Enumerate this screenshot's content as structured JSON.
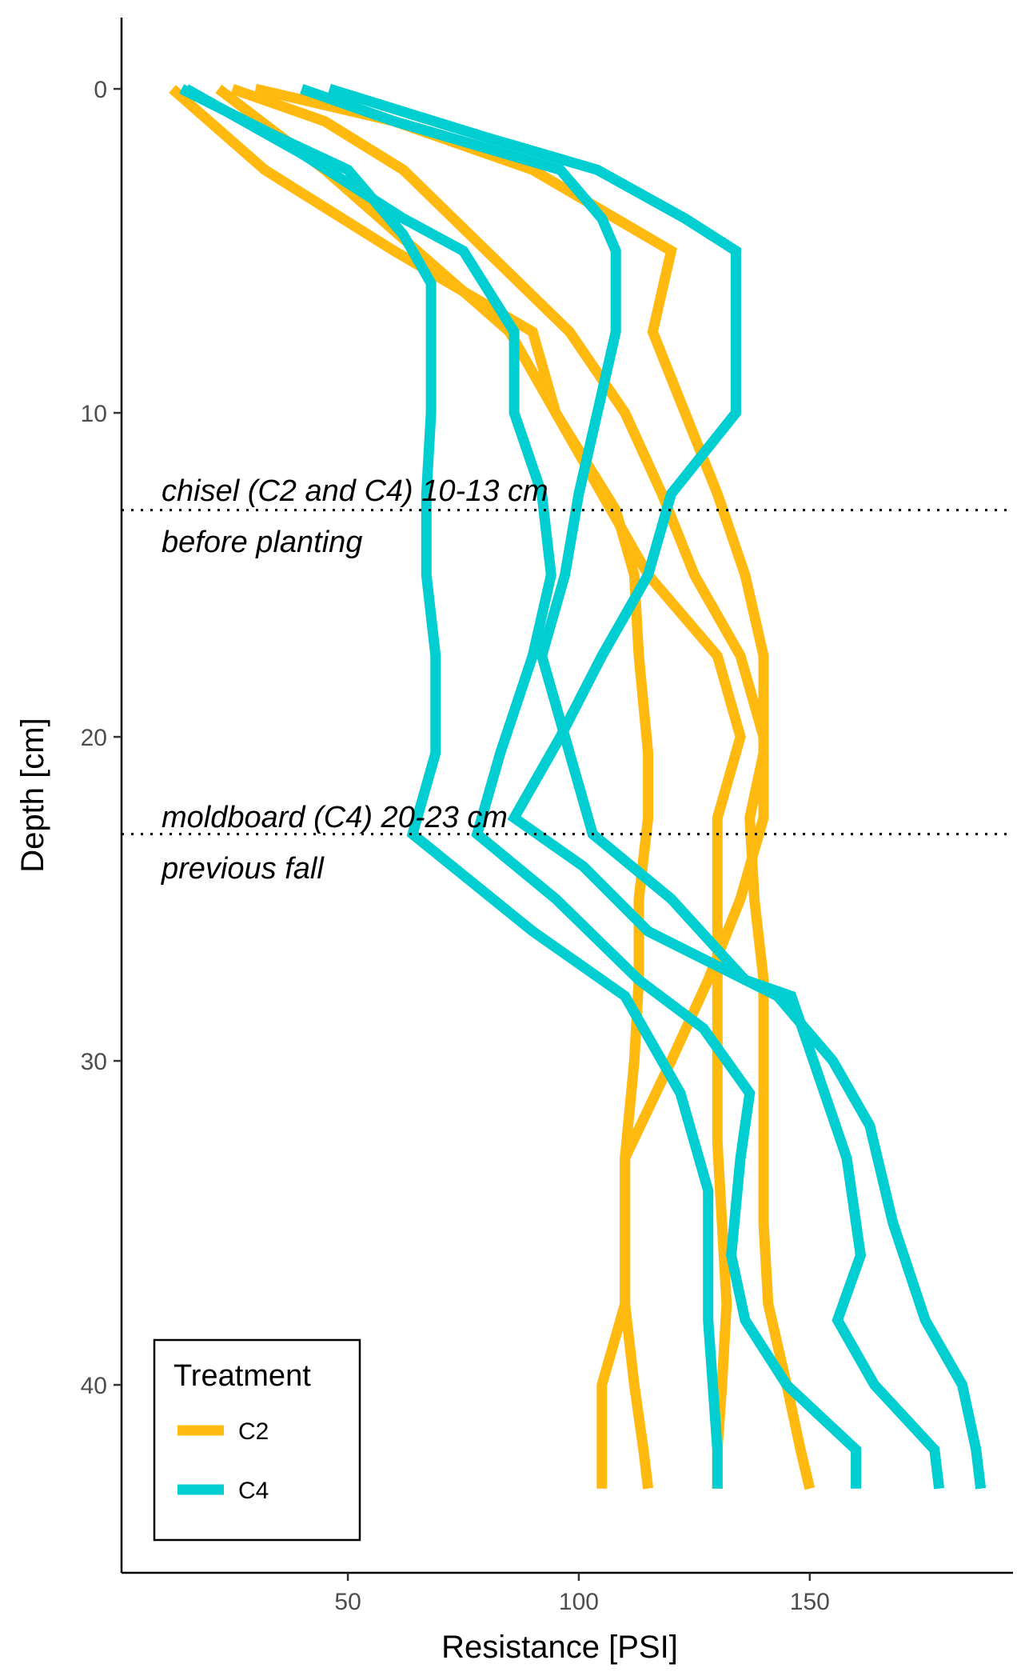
{
  "chart_data": {
    "type": "line",
    "xlabel": "Resistance [PSI]",
    "ylabel": "Depth [cm]",
    "xlim": [
      1,
      194
    ],
    "ylim": [
      -2.2,
      45.8
    ],
    "y_reversed": true,
    "xticks": [
      50,
      100,
      150
    ],
    "yticks": [
      0,
      10,
      20,
      30,
      40
    ],
    "grid": false,
    "legend": {
      "title": "Treatment",
      "placement": "bottom-left",
      "entries": [
        {
          "label": "C2",
          "color": "#FFB90F"
        },
        {
          "label": "C4",
          "color": "#00CED1"
        }
      ]
    },
    "hlines": [
      {
        "y": 13,
        "line1": "chisel (C2 and C4) 10-13 cm",
        "line2": "before planting"
      },
      {
        "y": 23,
        "line1": "moldboard (C4) 20-23 cm",
        "line2": "previous fall"
      }
    ],
    "series": [
      {
        "treatment": "C2",
        "points": [
          [
            12,
            0
          ],
          [
            32,
            2.5
          ],
          [
            60,
            5
          ],
          [
            72,
            6
          ],
          [
            90,
            7.5
          ],
          [
            95,
            10
          ],
          [
            108,
            13
          ],
          [
            112,
            15
          ],
          [
            113,
            17.5
          ],
          [
            115,
            20.5
          ],
          [
            115,
            22.5
          ],
          [
            113,
            25
          ],
          [
            113,
            27.5
          ],
          [
            112,
            30
          ],
          [
            110,
            33
          ],
          [
            110,
            35
          ],
          [
            110,
            37.5
          ],
          [
            105,
            40
          ],
          [
            105,
            42
          ],
          [
            105,
            43.2
          ]
        ]
      },
      {
        "treatment": "C2",
        "points": [
          [
            25,
            0
          ],
          [
            45,
            1
          ],
          [
            62,
            2.5
          ],
          [
            80,
            5
          ],
          [
            98,
            7.5
          ],
          [
            110,
            10
          ],
          [
            118,
            12.5
          ],
          [
            125,
            15
          ],
          [
            135,
            17.5
          ],
          [
            140,
            20
          ],
          [
            140,
            22.5
          ],
          [
            135,
            25
          ],
          [
            128,
            27.5
          ],
          [
            120,
            30
          ],
          [
            110,
            33
          ],
          [
            110,
            35
          ],
          [
            110,
            37.5
          ],
          [
            112,
            40
          ],
          [
            114,
            42
          ],
          [
            115,
            43.2
          ]
        ]
      },
      {
        "treatment": "C2",
        "points": [
          [
            22,
            0
          ],
          [
            45,
            2.5
          ],
          [
            65,
            5
          ],
          [
            85,
            7.5
          ],
          [
            95,
            10
          ],
          [
            105,
            12.5
          ],
          [
            115,
            15
          ],
          [
            130,
            17.5
          ],
          [
            135,
            20
          ],
          [
            130,
            22.5
          ],
          [
            130,
            25
          ],
          [
            130,
            27.5
          ],
          [
            130,
            30
          ],
          [
            130,
            32.5
          ],
          [
            131,
            35
          ],
          [
            132,
            37.5
          ],
          [
            131,
            40
          ],
          [
            130,
            42
          ],
          [
            130,
            43.2
          ]
        ]
      },
      {
        "treatment": "C2",
        "points": [
          [
            30,
            0
          ],
          [
            60,
            1
          ],
          [
            90,
            2.5
          ],
          [
            120,
            5
          ],
          [
            116,
            7.5
          ],
          [
            123,
            10
          ],
          [
            130,
            12.5
          ],
          [
            136,
            15
          ],
          [
            140,
            17.5
          ],
          [
            140,
            20.5
          ],
          [
            137,
            22.5
          ],
          [
            138,
            25
          ],
          [
            140,
            27.5
          ],
          [
            140,
            30
          ],
          [
            140,
            32.5
          ],
          [
            140,
            35
          ],
          [
            141,
            37.5
          ],
          [
            145,
            40
          ],
          [
            148,
            42
          ],
          [
            150,
            43.2
          ]
        ]
      },
      {
        "treatment": "C4",
        "points": [
          [
            14,
            0
          ],
          [
            35,
            1.5
          ],
          [
            50,
            2.5
          ],
          [
            62,
            4.5
          ],
          [
            68,
            6
          ],
          [
            68,
            7.5
          ],
          [
            68,
            10
          ],
          [
            67,
            12.5
          ],
          [
            67,
            15
          ],
          [
            69,
            17.5
          ],
          [
            69,
            20.5
          ],
          [
            64,
            23
          ],
          [
            90,
            26
          ],
          [
            110,
            28
          ],
          [
            122,
            31
          ],
          [
            128,
            34
          ],
          [
            128,
            36
          ],
          [
            128,
            38
          ],
          [
            129,
            40
          ],
          [
            130,
            42
          ],
          [
            130,
            43.2
          ]
        ]
      },
      {
        "treatment": "C4",
        "points": [
          [
            15,
            0
          ],
          [
            40,
            2
          ],
          [
            62,
            4
          ],
          [
            75,
            5
          ],
          [
            86,
            7.5
          ],
          [
            86,
            10
          ],
          [
            92,
            12.5
          ],
          [
            94,
            15
          ],
          [
            90,
            17.5
          ],
          [
            83,
            20.5
          ],
          [
            78,
            23
          ],
          [
            95,
            25
          ],
          [
            113,
            27.5
          ],
          [
            127,
            29
          ],
          [
            137,
            31
          ],
          [
            135,
            33
          ],
          [
            133,
            36
          ],
          [
            136,
            38
          ],
          [
            145,
            40
          ],
          [
            160,
            42
          ],
          [
            160,
            43.2
          ]
        ]
      },
      {
        "treatment": "C4",
        "points": [
          [
            40,
            0
          ],
          [
            60,
            1
          ],
          [
            96,
            2.5
          ],
          [
            105,
            4
          ],
          [
            108,
            5
          ],
          [
            108,
            7.5
          ],
          [
            104,
            10
          ],
          [
            100,
            12.5
          ],
          [
            97,
            15
          ],
          [
            92,
            17.5
          ],
          [
            97,
            20
          ],
          [
            103,
            23
          ],
          [
            120,
            25
          ],
          [
            136,
            27.5
          ],
          [
            146,
            28
          ],
          [
            152,
            30.5
          ],
          [
            158,
            33
          ],
          [
            161,
            36
          ],
          [
            156,
            38
          ],
          [
            164,
            40
          ],
          [
            177,
            42
          ],
          [
            178,
            43.2
          ]
        ]
      },
      {
        "treatment": "C4",
        "points": [
          [
            46,
            0
          ],
          [
            80,
            1.5
          ],
          [
            104,
            2.5
          ],
          [
            123,
            4
          ],
          [
            134,
            5
          ],
          [
            134,
            7.5
          ],
          [
            134,
            10
          ],
          [
            120,
            12.5
          ],
          [
            115,
            15
          ],
          [
            105,
            17.5
          ],
          [
            96,
            20
          ],
          [
            86,
            22.5
          ],
          [
            101,
            24
          ],
          [
            115,
            26
          ],
          [
            143,
            28
          ],
          [
            155,
            30
          ],
          [
            163,
            32
          ],
          [
            168,
            35
          ],
          [
            175,
            38
          ],
          [
            183,
            40
          ],
          [
            186,
            42
          ],
          [
            187,
            43.2
          ]
        ]
      }
    ]
  }
}
